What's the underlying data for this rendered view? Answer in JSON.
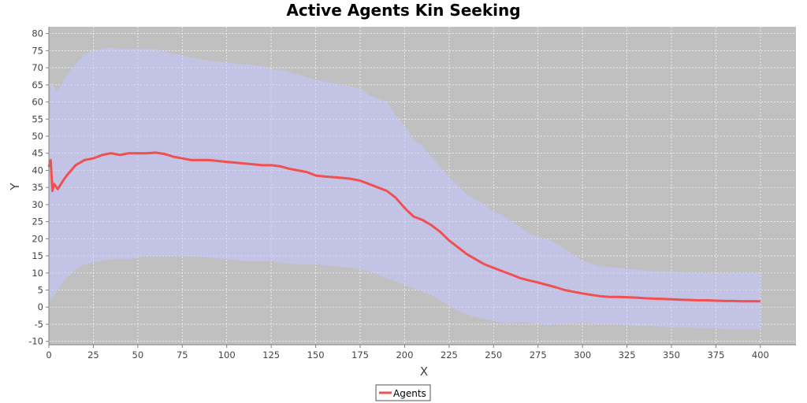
{
  "chart_data": {
    "type": "line",
    "title": "Active Agents Kin Seeking",
    "xlabel": "X",
    "ylabel": "Y",
    "xlim": [
      0,
      420
    ],
    "ylim": [
      -11,
      82
    ],
    "xticks": [
      0,
      25,
      50,
      75,
      100,
      125,
      150,
      175,
      200,
      225,
      250,
      275,
      300,
      325,
      350,
      375,
      400
    ],
    "yticks": [
      -10,
      -5,
      0,
      5,
      10,
      15,
      20,
      25,
      30,
      35,
      40,
      45,
      50,
      55,
      60,
      65,
      70,
      75,
      80
    ],
    "grid": true,
    "legend": "bottom-center",
    "colors": {
      "plot_background": "#c0c0c0",
      "band": "#c3c3e6",
      "series": "#f05050",
      "grid": "#ffffff"
    },
    "series": [
      {
        "name": "Agents",
        "x": [
          0,
          1,
          2,
          3,
          5,
          8,
          10,
          15,
          20,
          25,
          30,
          35,
          40,
          45,
          50,
          55,
          60,
          65,
          70,
          75,
          80,
          90,
          100,
          110,
          120,
          125,
          130,
          135,
          140,
          145,
          150,
          155,
          160,
          165,
          170,
          175,
          180,
          185,
          190,
          195,
          200,
          205,
          210,
          215,
          220,
          225,
          230,
          235,
          240,
          245,
          250,
          255,
          260,
          265,
          270,
          275,
          280,
          285,
          290,
          295,
          300,
          305,
          310,
          315,
          320,
          325,
          330,
          335,
          340,
          345,
          350,
          355,
          360,
          365,
          370,
          375,
          380,
          385,
          390,
          395,
          400
        ],
        "values": [
          41,
          43,
          34,
          36,
          34.5,
          37,
          38.5,
          41.5,
          43,
          43.5,
          44.5,
          45,
          44.5,
          45,
          45,
          45,
          45.2,
          44.8,
          44,
          43.5,
          43,
          43,
          42.5,
          42,
          41.5,
          41.5,
          41.2,
          40.5,
          40,
          39.5,
          38.5,
          38.2,
          38,
          37.8,
          37.5,
          37,
          36,
          35,
          34,
          32,
          29,
          26.5,
          25.5,
          24,
          22,
          19.5,
          17.5,
          15.5,
          14,
          12.5,
          11.5,
          10.5,
          9.5,
          8.5,
          7.8,
          7.2,
          6.5,
          5.8,
          5,
          4.5,
          4,
          3.6,
          3.2,
          3,
          3,
          2.9,
          2.8,
          2.6,
          2.5,
          2.4,
          2.3,
          2.2,
          2.1,
          2,
          2,
          1.9,
          1.8,
          1.8,
          1.7,
          1.7,
          1.7
        ]
      }
    ],
    "band": {
      "x": [
        0,
        1,
        2,
        3,
        5,
        10,
        15,
        20,
        25,
        30,
        35,
        40,
        45,
        50,
        55,
        60,
        70,
        80,
        90,
        100,
        110,
        120,
        125,
        130,
        140,
        150,
        160,
        170,
        175,
        180,
        185,
        190,
        195,
        200,
        205,
        210,
        215,
        220,
        225,
        230,
        235,
        240,
        245,
        250,
        255,
        260,
        265,
        270,
        275,
        280,
        285,
        290,
        300,
        310,
        320,
        330,
        340,
        350,
        360,
        370,
        375,
        380,
        390,
        400
      ],
      "upper": [
        40,
        65,
        66,
        64,
        63,
        68,
        71,
        74,
        75,
        75.5,
        76,
        75.5,
        75.5,
        75.5,
        75.5,
        75.5,
        74,
        73,
        72,
        71.5,
        71,
        70.5,
        69.5,
        69.5,
        68,
        66.5,
        65.5,
        64.5,
        64,
        62,
        61,
        60,
        56,
        53,
        49,
        47,
        44,
        41,
        38,
        35.5,
        33,
        31.5,
        30,
        28,
        27,
        25,
        23.5,
        21.5,
        20.5,
        20,
        18.5,
        17,
        13.5,
        12,
        11.5,
        11,
        10.5,
        10.5,
        10,
        10,
        9.8,
        10,
        10,
        10
      ],
      "lower": [
        2,
        2,
        3,
        3.5,
        5,
        8.5,
        11,
        12.5,
        13,
        13.5,
        14,
        14,
        14,
        14.5,
        15,
        15,
        15,
        14.8,
        14.5,
        14,
        13.5,
        13.5,
        13.5,
        13,
        12.5,
        12.5,
        12,
        11.5,
        11,
        10.5,
        9.5,
        8.5,
        7.5,
        6.5,
        5.5,
        4.5,
        3.5,
        2,
        0.5,
        -1,
        -2,
        -3,
        -3.5,
        -4,
        -4.5,
        -4.5,
        -4.3,
        -4.5,
        -5,
        -5.2,
        -5.2,
        -5,
        -4.5,
        -5,
        -5,
        -5.5,
        -5.5,
        -6,
        -6,
        -6.2,
        -6.2,
        -6.5,
        -6.5,
        -6.5
      ]
    }
  }
}
